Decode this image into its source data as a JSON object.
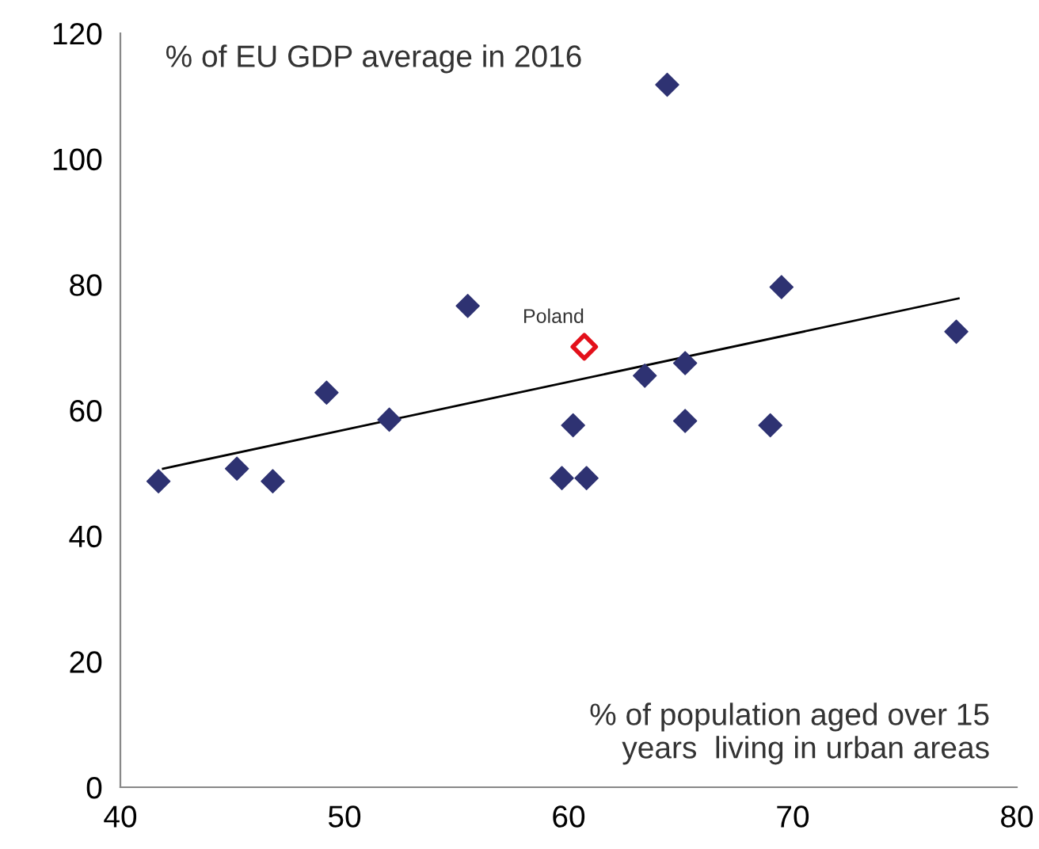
{
  "chart_data": {
    "type": "scatter",
    "ylabel": "% of EU GDP average in 2016",
    "xlabel": "% of population aged over 15\nyears  living in urban areas",
    "xlim": [
      40,
      80
    ],
    "xticks": [
      40,
      50,
      60,
      70,
      80
    ],
    "ylim": [
      0,
      120
    ],
    "yticks": [
      0,
      20,
      40,
      60,
      80,
      100,
      120
    ],
    "grid": false,
    "legend": false,
    "series": [
      {
        "marker": "diamond",
        "color": "#2e3272",
        "x": [
          41.7,
          45.2,
          46.8,
          49.2,
          52.0,
          55.5,
          64.4,
          60.2,
          59.7,
          60.8,
          63.4,
          65.2,
          65.2,
          69.0,
          69.5,
          77.3
        ],
        "values": [
          48.7,
          50.7,
          48.7,
          62.8,
          58.5,
          76.6,
          111.8,
          57.6,
          49.2,
          49.2,
          65.5,
          67.5,
          58.3,
          57.6,
          79.6,
          72.5
        ]
      },
      {
        "marker": "diamond",
        "name": "Poland",
        "color": "#e3101a",
        "x": [
          60.7
        ],
        "values": [
          70.1
        ]
      },
      {
        "type": "line",
        "marker": "none",
        "color": "#000000",
        "x": [
          41.9,
          77.4
        ],
        "values": [
          50.7,
          77.8
        ]
      }
    ]
  }
}
